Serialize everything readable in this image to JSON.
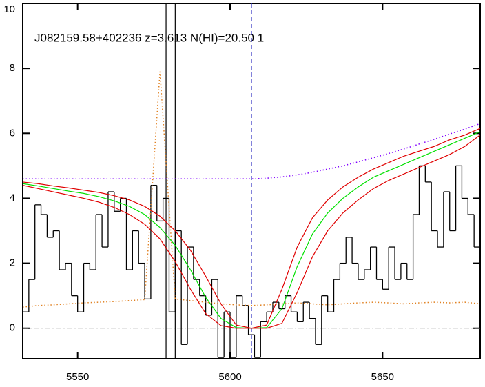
{
  "chart_data": {
    "type": "line",
    "title": "J082159.58+402236 z=3.613 N(HI)=20.50 1",
    "xlim": [
      5532,
      5682
    ],
    "ylim": [
      -0.94,
      10
    ],
    "xticks": [
      5550,
      5600,
      5650
    ],
    "yticks": [
      0,
      2,
      4,
      6,
      8,
      10
    ],
    "zero_line": {
      "value": 0,
      "color": "#999999"
    },
    "vlines": [
      {
        "x": 5579,
        "color": "#000000",
        "dash": "solid"
      },
      {
        "x": 5582,
        "color": "#000000",
        "dash": "solid"
      },
      {
        "x": 5607,
        "color": "#3030c0",
        "dash": "dashed"
      }
    ],
    "series": [
      {
        "color": "#000000",
        "style": "step",
        "x": [
          5533,
          5535,
          5537,
          5539,
          5541,
          5543,
          5545,
          5547,
          5549,
          5551,
          5553,
          5555,
          5557,
          5559,
          5561,
          5563,
          5565,
          5567,
          5569,
          5571,
          5573,
          5575,
          5577,
          5579,
          5581,
          5583,
          5585,
          5587,
          5589,
          5591,
          5593,
          5595,
          5597,
          5599,
          5601,
          5603,
          5605,
          5607,
          5609,
          5611,
          5613,
          5615,
          5617,
          5619,
          5621,
          5623,
          5625,
          5627,
          5629,
          5631,
          5633,
          5635,
          5637,
          5639,
          5641,
          5643,
          5645,
          5647,
          5649,
          5651,
          5653,
          5655,
          5657,
          5659,
          5661,
          5663,
          5665,
          5667,
          5669,
          5671,
          5673,
          5675,
          5677,
          5679,
          5681
        ],
        "values": [
          0.5,
          1.5,
          3.8,
          3.5,
          2.8,
          3.0,
          1.8,
          2.0,
          1.0,
          0.5,
          2.0,
          1.8,
          3.5,
          2.5,
          4.2,
          3.6,
          4.0,
          1.8,
          3.0,
          2.0,
          0.9,
          4.4,
          3.3,
          4.0,
          0.5,
          3.0,
          -0.5,
          2.5,
          1.5,
          1.0,
          0.4,
          1.5,
          -0.9,
          0.5,
          -0.9,
          1.0,
          0.7,
          -0.2,
          -0.9,
          0.2,
          0.5,
          0.8,
          0.6,
          1.0,
          0.5,
          0.2,
          0.8,
          0.3,
          -0.5,
          1.0,
          0.5,
          1.5,
          2.0,
          2.8,
          2.0,
          1.5,
          1.8,
          2.5,
          1.5,
          1.2,
          2.5,
          1.5,
          2.0,
          1.5,
          3.5,
          5.0,
          4.5,
          3.0,
          2.5,
          4.2,
          3.0,
          5.0,
          4.0,
          3.5,
          2.5
        ]
      },
      {
        "color": "#e08020",
        "style": "dotted",
        "x": [
          5532,
          5537,
          5542,
          5547,
          5552,
          5557,
          5562,
          5567,
          5572,
          5577,
          5582,
          5587,
          5592,
          5597,
          5602,
          5607,
          5612,
          5617,
          5622,
          5627,
          5632,
          5637,
          5642,
          5647,
          5652,
          5657,
          5662,
          5667,
          5672,
          5677,
          5682
        ],
        "values": [
          0.65,
          0.7,
          0.72,
          0.75,
          0.78,
          0.8,
          0.82,
          0.85,
          0.88,
          7.9,
          0.9,
          0.85,
          0.8,
          0.75,
          0.72,
          0.7,
          0.72,
          0.75,
          0.78,
          0.75,
          0.72,
          0.75,
          0.78,
          0.8,
          0.78,
          0.75,
          0.78,
          0.8,
          0.78,
          0.8,
          0.75
        ]
      },
      {
        "color": "#8000ff",
        "style": "dotted",
        "x": [
          5532,
          5537,
          5542,
          5547,
          5552,
          5557,
          5562,
          5567,
          5572,
          5577,
          5582,
          5587,
          5592,
          5597,
          5602,
          5607,
          5612,
          5617,
          5622,
          5627,
          5632,
          5637,
          5642,
          5647,
          5652,
          5657,
          5662,
          5667,
          5672,
          5677,
          5682
        ],
        "values": [
          4.6,
          4.6,
          4.6,
          4.6,
          4.6,
          4.6,
          4.6,
          4.6,
          4.6,
          4.6,
          4.6,
          4.6,
          4.6,
          4.6,
          4.6,
          4.6,
          4.62,
          4.66,
          4.72,
          4.8,
          4.9,
          5.0,
          5.12,
          5.25,
          5.38,
          5.52,
          5.67,
          5.82,
          5.98,
          6.13,
          6.3
        ]
      },
      {
        "color": "#00e000",
        "style": "solid",
        "x": [
          5532,
          5537,
          5542,
          5547,
          5552,
          5557,
          5562,
          5567,
          5572,
          5577,
          5582,
          5587,
          5592,
          5597,
          5602,
          5607,
          5612,
          5617,
          5622,
          5627,
          5632,
          5637,
          5642,
          5647,
          5652,
          5657,
          5662,
          5667,
          5672,
          5677,
          5682
        ],
        "values": [
          4.45,
          4.38,
          4.3,
          4.22,
          4.15,
          4.05,
          3.92,
          3.75,
          3.5,
          3.1,
          2.55,
          1.8,
          0.95,
          0.3,
          0.02,
          0,
          0.02,
          0.6,
          1.9,
          2.9,
          3.55,
          4.0,
          4.35,
          4.65,
          4.85,
          5.05,
          5.25,
          5.45,
          5.65,
          5.85,
          6.05
        ]
      },
      {
        "color": "#e00000",
        "style": "solid",
        "x": [
          5532,
          5537,
          5542,
          5547,
          5552,
          5557,
          5562,
          5567,
          5572,
          5577,
          5582,
          5587,
          5592,
          5597,
          5602,
          5607,
          5612,
          5617,
          5622,
          5627,
          5632,
          5637,
          5642,
          5647,
          5652,
          5657,
          5662,
          5667,
          5672,
          5677,
          5682
        ],
        "values": [
          4.5,
          4.45,
          4.38,
          4.32,
          4.25,
          4.18,
          4.08,
          3.95,
          3.75,
          3.45,
          3.0,
          2.4,
          1.6,
          0.75,
          0.1,
          0,
          0.1,
          1.2,
          2.5,
          3.4,
          3.95,
          4.35,
          4.65,
          4.9,
          5.1,
          5.3,
          5.45,
          5.6,
          5.8,
          5.95,
          6.15
        ]
      },
      {
        "color": "#e00000",
        "style": "solid",
        "x": [
          5532,
          5537,
          5542,
          5547,
          5552,
          5557,
          5562,
          5567,
          5572,
          5577,
          5582,
          5587,
          5592,
          5597,
          5602,
          5607,
          5612,
          5617,
          5622,
          5627,
          5632,
          5637,
          5642,
          5647,
          5652,
          5657,
          5662,
          5667,
          5672,
          5677,
          5682
        ],
        "values": [
          4.4,
          4.3,
          4.2,
          4.1,
          4.0,
          3.88,
          3.72,
          3.5,
          3.2,
          2.75,
          2.05,
          1.2,
          0.45,
          0.08,
          0,
          0,
          0,
          0.15,
          1.1,
          2.2,
          3.0,
          3.55,
          3.95,
          4.3,
          4.55,
          4.75,
          4.95,
          5.15,
          5.35,
          5.6,
          5.95
        ]
      }
    ]
  }
}
